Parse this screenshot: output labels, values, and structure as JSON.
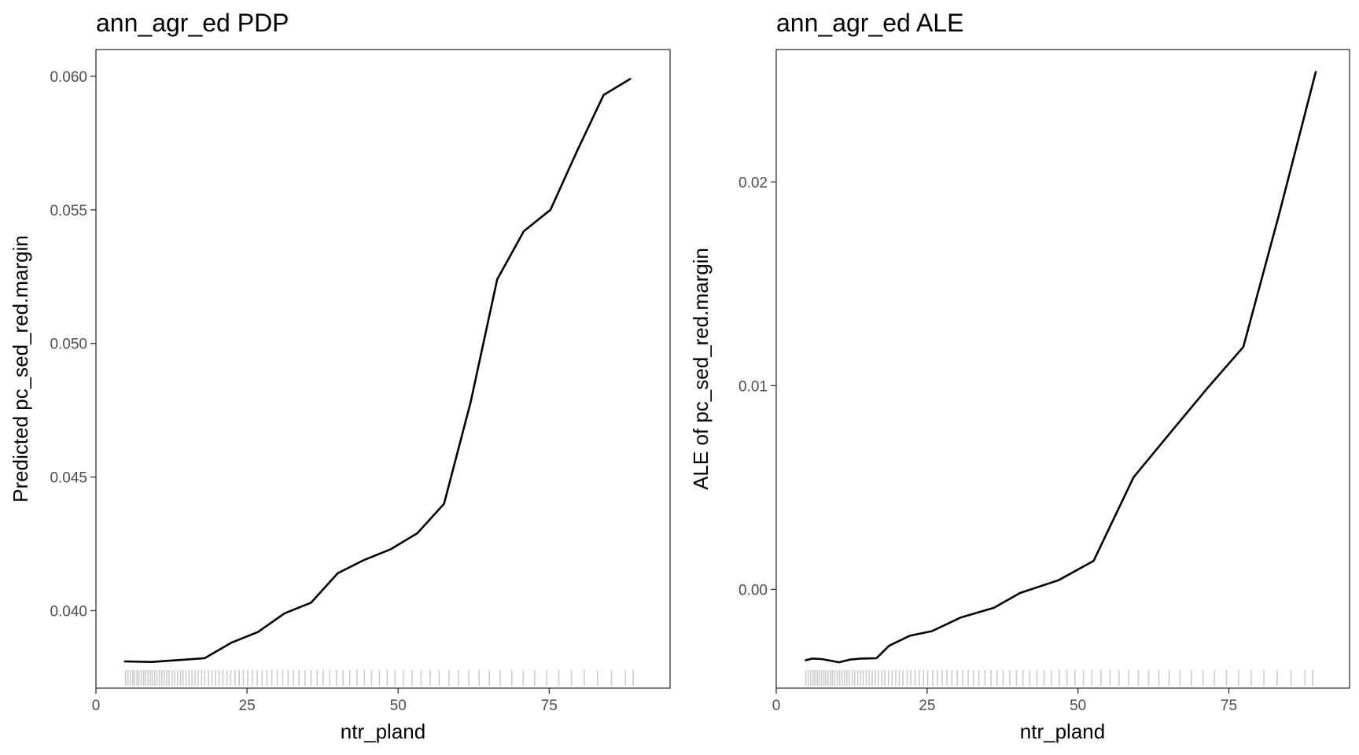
{
  "chart_data": [
    {
      "type": "line",
      "title": "ann_agr_ed PDP",
      "xlabel": "ntr_pland",
      "ylabel": "Predicted pc_sed_red.margin",
      "xlim": [
        0,
        95
      ],
      "ylim": [
        0.0371,
        0.061
      ],
      "xticks": [
        0,
        25,
        50,
        75
      ],
      "xtick_labels": [
        "0",
        "25",
        "50",
        "75"
      ],
      "yticks": [
        0.04,
        0.045,
        0.05,
        0.055,
        0.06
      ],
      "ytick_labels": [
        "0.040",
        "0.045",
        "0.050",
        "0.055",
        "0.060"
      ],
      "grid": false,
      "series": [
        {
          "x": [
            4.8,
            9.2,
            13.6,
            18.0,
            22.4,
            26.8,
            31.2,
            35.6,
            40.0,
            44.4,
            48.8,
            53.2,
            57.6,
            62.0,
            66.4,
            70.8,
            75.2,
            79.6,
            84.0,
            88.4
          ],
          "y": [
            0.0381,
            0.03808,
            0.03815,
            0.03822,
            0.0388,
            0.0392,
            0.0399,
            0.0403,
            0.0414,
            0.0419,
            0.0423,
            0.0429,
            0.044,
            0.0478,
            0.0524,
            0.0542,
            0.055,
            0.0572,
            0.0593,
            0.0599
          ]
        }
      ],
      "rug": [
        4.9,
        5.3,
        5.7,
        6.1,
        6.4,
        6.8,
        7.1,
        7.5,
        7.9,
        8.2,
        8.6,
        9.0,
        9.3,
        9.7,
        10.1,
        10.5,
        10.9,
        11.3,
        11.7,
        12.1,
        12.6,
        13.0,
        13.5,
        14.0,
        14.4,
        14.9,
        15.4,
        15.9,
        16.4,
        16.9,
        17.5,
        18.0,
        18.6,
        19.2,
        19.8,
        20.4,
        21.0,
        21.7,
        22.3,
        23.0,
        23.7,
        24.4,
        25.1,
        25.9,
        26.7,
        27.5,
        28.3,
        29.1,
        30.0,
        30.9,
        31.8,
        32.7,
        33.6,
        34.6,
        35.6,
        36.6,
        37.6,
        38.7,
        39.8,
        40.9,
        42.0,
        43.2,
        44.4,
        45.6,
        46.9,
        48.2,
        49.5,
        50.9,
        52.3,
        53.8,
        55.3,
        56.8,
        58.4,
        60.0,
        61.7,
        63.4,
        65.1,
        66.9,
        68.8,
        70.7,
        72.6,
        74.6,
        76.6,
        78.7,
        80.8,
        83.0,
        85.3,
        87.6,
        88.9
      ],
      "line_color": "#000000"
    },
    {
      "type": "line",
      "title": "ann_agr_ed ALE",
      "xlabel": "ntr_pland",
      "ylabel": "ALE of pc_sed_red.margin",
      "xlim": [
        0,
        95
      ],
      "ylim": [
        -0.00485,
        0.0265
      ],
      "xticks": [
        0,
        25,
        50,
        75
      ],
      "xtick_labels": [
        "0",
        "25",
        "50",
        "75"
      ],
      "yticks": [
        0.0,
        0.01,
        0.02
      ],
      "ytick_labels": [
        "0.00",
        "0.01",
        "0.02"
      ],
      "grid": false,
      "series": [
        {
          "x": [
            4.9,
            6.0,
            7.5,
            8.6,
            10.4,
            12.2,
            14.0,
            16.6,
            18.7,
            22.1,
            25.8,
            30.6,
            36.1,
            40.4,
            46.8,
            52.6,
            59.2,
            65.6,
            71.5,
            77.4,
            83.4,
            89.4
          ],
          "y": [
            -0.00348,
            -0.0034,
            -0.00342,
            -0.00348,
            -0.00358,
            -0.00345,
            -0.0034,
            -0.00338,
            -0.00277,
            -0.00228,
            -0.00205,
            -0.00138,
            -0.0009,
            -0.00018,
            0.00045,
            0.0014,
            0.0055,
            0.0078,
            0.0099,
            0.0119,
            0.0185,
            0.0254
          ]
        }
      ],
      "rug": [
        4.9,
        5.3,
        5.7,
        6.1,
        6.4,
        6.8,
        7.1,
        7.5,
        7.9,
        8.2,
        8.6,
        9.0,
        9.3,
        9.7,
        10.1,
        10.5,
        10.9,
        11.3,
        11.7,
        12.1,
        12.6,
        13.0,
        13.5,
        14.0,
        14.4,
        14.9,
        15.4,
        15.9,
        16.4,
        16.9,
        17.5,
        18.0,
        18.6,
        19.2,
        19.8,
        20.4,
        21.0,
        21.7,
        22.3,
        23.0,
        23.7,
        24.4,
        25.1,
        25.9,
        26.7,
        27.5,
        28.3,
        29.1,
        30.0,
        30.9,
        31.8,
        32.7,
        33.6,
        34.6,
        35.6,
        36.6,
        37.6,
        38.7,
        39.8,
        40.9,
        42.0,
        43.2,
        44.4,
        45.6,
        46.9,
        48.2,
        49.5,
        50.9,
        52.3,
        53.8,
        55.3,
        56.8,
        58.4,
        60.0,
        61.7,
        63.4,
        65.1,
        66.9,
        68.8,
        70.7,
        72.6,
        74.6,
        76.6,
        78.7,
        80.8,
        83.0,
        85.3,
        87.6,
        88.9
      ],
      "line_color": "#000000"
    }
  ]
}
